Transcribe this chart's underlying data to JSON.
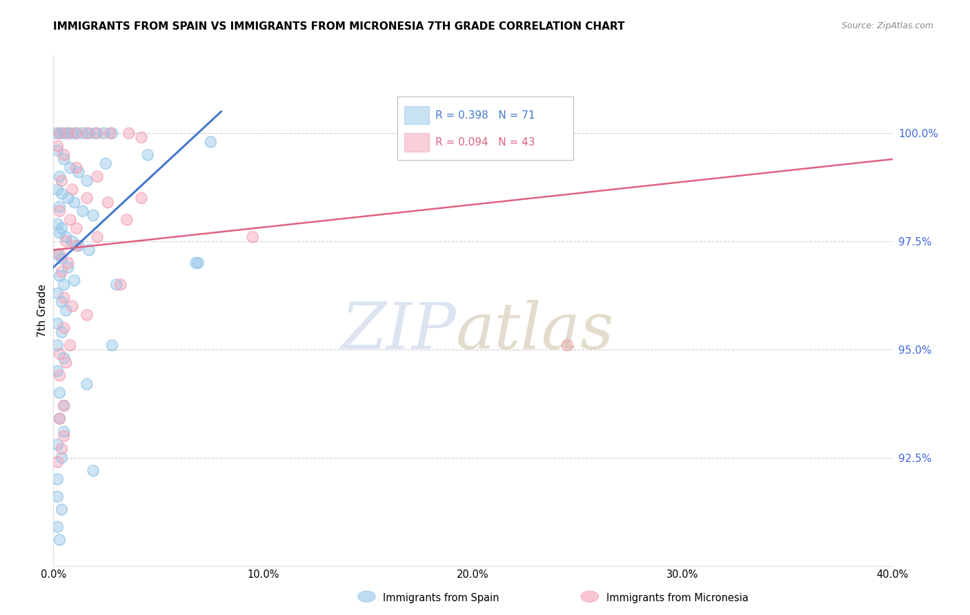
{
  "title": "IMMIGRANTS FROM SPAIN VS IMMIGRANTS FROM MICRONESIA 7TH GRADE CORRELATION CHART",
  "source": "Source: ZipAtlas.com",
  "ylabel": "7th Grade",
  "x_tick_labels": [
    "0.0%",
    "10.0%",
    "20.0%",
    "30.0%",
    "40.0%"
  ],
  "x_tick_values": [
    0.0,
    10.0,
    20.0,
    30.0,
    40.0
  ],
  "y_tick_labels": [
    "92.5%",
    "95.0%",
    "97.5%",
    "100.0%"
  ],
  "y_tick_values": [
    92.5,
    95.0,
    97.5,
    100.0
  ],
  "xlim": [
    0.0,
    40.0
  ],
  "ylim": [
    90.0,
    101.8
  ],
  "blue_color": "#92c5e8",
  "pink_color": "#f4a0b5",
  "blue_line_color": "#4477cc",
  "pink_line_color": "#e06080",
  "right_axis_color": "#4466dd",
  "blue_scatter": [
    [
      0.15,
      100.0
    ],
    [
      0.3,
      100.0
    ],
    [
      0.5,
      100.0
    ],
    [
      0.7,
      100.0
    ],
    [
      0.9,
      100.0
    ],
    [
      1.1,
      100.0
    ],
    [
      1.4,
      100.0
    ],
    [
      1.7,
      100.0
    ],
    [
      2.0,
      100.0
    ],
    [
      2.4,
      100.0
    ],
    [
      2.8,
      100.0
    ],
    [
      0.2,
      99.6
    ],
    [
      0.5,
      99.4
    ],
    [
      0.8,
      99.2
    ],
    [
      1.2,
      99.1
    ],
    [
      1.6,
      98.9
    ],
    [
      0.3,
      99.0
    ],
    [
      2.5,
      99.3
    ],
    [
      4.5,
      99.5
    ],
    [
      0.2,
      98.7
    ],
    [
      0.4,
      98.6
    ],
    [
      0.7,
      98.5
    ],
    [
      1.0,
      98.4
    ],
    [
      1.4,
      98.2
    ],
    [
      1.9,
      98.1
    ],
    [
      0.3,
      98.3
    ],
    [
      0.2,
      97.9
    ],
    [
      0.4,
      97.8
    ],
    [
      0.6,
      97.6
    ],
    [
      0.9,
      97.5
    ],
    [
      1.2,
      97.4
    ],
    [
      0.3,
      97.7
    ],
    [
      1.7,
      97.3
    ],
    [
      0.2,
      97.2
    ],
    [
      0.4,
      97.1
    ],
    [
      0.7,
      96.9
    ],
    [
      0.3,
      96.7
    ],
    [
      0.5,
      96.5
    ],
    [
      1.0,
      96.6
    ],
    [
      0.2,
      96.3
    ],
    [
      0.4,
      96.1
    ],
    [
      0.6,
      95.9
    ],
    [
      0.2,
      95.6
    ],
    [
      0.4,
      95.4
    ],
    [
      0.2,
      95.1
    ],
    [
      0.5,
      94.8
    ],
    [
      0.2,
      94.5
    ],
    [
      1.6,
      94.2
    ],
    [
      0.3,
      94.0
    ],
    [
      0.5,
      93.7
    ],
    [
      0.3,
      93.4
    ],
    [
      0.5,
      93.1
    ],
    [
      0.2,
      92.8
    ],
    [
      0.4,
      92.5
    ],
    [
      1.9,
      92.2
    ],
    [
      0.2,
      92.0
    ],
    [
      0.2,
      91.6
    ],
    [
      0.4,
      91.3
    ],
    [
      0.2,
      90.9
    ],
    [
      0.3,
      90.6
    ],
    [
      2.8,
      95.1
    ],
    [
      3.0,
      96.5
    ],
    [
      6.8,
      97.0
    ],
    [
      6.9,
      97.0
    ],
    [
      7.5,
      99.8
    ]
  ],
  "pink_scatter": [
    [
      0.3,
      100.0
    ],
    [
      0.7,
      100.0
    ],
    [
      1.1,
      100.0
    ],
    [
      1.6,
      100.0
    ],
    [
      2.1,
      100.0
    ],
    [
      2.7,
      100.0
    ],
    [
      3.6,
      100.0
    ],
    [
      4.2,
      99.9
    ],
    [
      0.5,
      99.5
    ],
    [
      1.1,
      99.2
    ],
    [
      2.1,
      99.0
    ],
    [
      0.4,
      98.9
    ],
    [
      0.9,
      98.7
    ],
    [
      1.6,
      98.5
    ],
    [
      2.6,
      98.4
    ],
    [
      0.3,
      98.2
    ],
    [
      0.8,
      98.0
    ],
    [
      0.2,
      99.7
    ],
    [
      1.1,
      97.8
    ],
    [
      2.1,
      97.6
    ],
    [
      0.6,
      97.5
    ],
    [
      1.1,
      97.4
    ],
    [
      0.3,
      97.2
    ],
    [
      0.7,
      97.0
    ],
    [
      0.4,
      96.8
    ],
    [
      3.2,
      96.5
    ],
    [
      0.5,
      96.2
    ],
    [
      0.9,
      96.0
    ],
    [
      1.6,
      95.8
    ],
    [
      0.5,
      95.5
    ],
    [
      0.8,
      95.1
    ],
    [
      0.3,
      94.9
    ],
    [
      0.6,
      94.7
    ],
    [
      0.3,
      94.4
    ],
    [
      0.5,
      93.7
    ],
    [
      0.3,
      93.4
    ],
    [
      0.5,
      93.0
    ],
    [
      0.4,
      92.7
    ],
    [
      0.2,
      92.4
    ],
    [
      9.5,
      97.6
    ],
    [
      24.5,
      95.1
    ],
    [
      3.5,
      98.0
    ],
    [
      4.2,
      98.5
    ]
  ],
  "blue_line_x": [
    0.0,
    8.0
  ],
  "blue_line_y": [
    96.9,
    100.5
  ],
  "pink_line_x": [
    0.0,
    40.0
  ],
  "pink_line_y": [
    97.3,
    99.4
  ]
}
